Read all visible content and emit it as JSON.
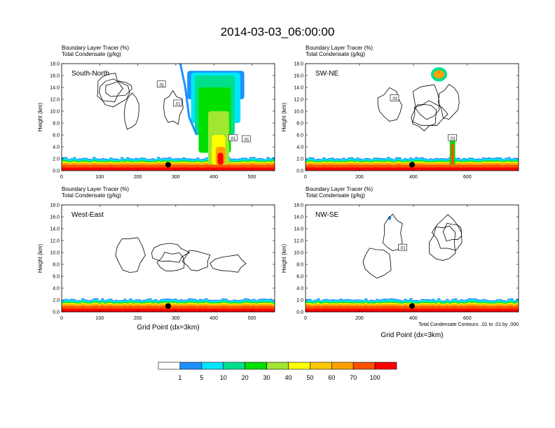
{
  "page_title": "2014-03-03_06:00:00",
  "chart_data": [
    {
      "type": "heatmap",
      "panel_label": "South-North",
      "title_line1": "Boundary Layer Tracer   (%)",
      "title_line2": "Total Condensate   (g/kg)",
      "ylabel": "Height (km)",
      "xlabel": "",
      "xlim": [
        0,
        560
      ],
      "ylim": [
        0,
        18
      ],
      "x_ticks": [
        "0",
        "100",
        "200",
        "300",
        "400",
        "500"
      ],
      "x_tick_values": [
        0,
        100,
        200,
        300,
        400,
        500
      ],
      "y_ticks": [
        "0.0",
        "2.0",
        "4.0",
        "6.0",
        "8.0",
        "10.0",
        "12.0",
        "14.0",
        "16.0",
        "18.0"
      ],
      "marker": {
        "x": 280,
        "y": 1.0
      },
      "contour_labels": [
        {
          "text": ".01",
          "x": 262,
          "y": 14.5
        },
        {
          "text": ".01",
          "x": 305,
          "y": 11.3
        },
        {
          "text": ".01",
          "x": 450,
          "y": 5.5
        },
        {
          "text": ".01",
          "x": 485,
          "y": 5.3
        }
      ],
      "note": ""
    },
    {
      "type": "heatmap",
      "panel_label": "SW-NE",
      "title_line1": "Boundary Layer Tracer   (%)",
      "title_line2": "Total Condensate   (g/kg)",
      "ylabel": "Height (km)",
      "xlabel": "",
      "xlim": [
        0,
        790
      ],
      "ylim": [
        0,
        18
      ],
      "x_ticks": [
        "0",
        "200",
        "400",
        "600"
      ],
      "x_tick_values": [
        0,
        200,
        400,
        600
      ],
      "y_ticks": [
        "0.0",
        "2.0",
        "4.0",
        "6.0",
        "8.0",
        "10.0",
        "12.0",
        "14.0",
        "16.0",
        "18.0"
      ],
      "marker": {
        "x": 395,
        "y": 1.0
      },
      "contour_labels": [
        {
          "text": ".01",
          "x": 330,
          "y": 12.2
        },
        {
          "text": ".01",
          "x": 545,
          "y": 5.5
        }
      ],
      "note": ""
    },
    {
      "type": "heatmap",
      "panel_label": "West-East",
      "title_line1": "Boundary Layer Tracer   (%)",
      "title_line2": "Total Condensate   (g/kg)",
      "ylabel": "Height (km)",
      "xlabel": "Grid Point (dx=3km)",
      "xlim": [
        0,
        560
      ],
      "ylim": [
        0,
        18
      ],
      "x_ticks": [
        "0",
        "100",
        "200",
        "300",
        "400",
        "500"
      ],
      "x_tick_values": [
        0,
        100,
        200,
        300,
        400,
        500
      ],
      "y_ticks": [
        "0.0",
        "2.0",
        "4.0",
        "6.0",
        "8.0",
        "10.0",
        "12.0",
        "14.0",
        "16.0",
        "18.0"
      ],
      "marker": {
        "x": 280,
        "y": 1.0
      },
      "contour_labels": [],
      "note": ""
    },
    {
      "type": "heatmap",
      "panel_label": "NW-SE",
      "title_line1": "Boundary Layer Tracer   (%)",
      "title_line2": "Total Condensate   (g/kg)",
      "ylabel": "Height (km)",
      "xlabel": "Grid Point (dx=3km)",
      "xlim": [
        0,
        790
      ],
      "ylim": [
        0,
        18
      ],
      "x_ticks": [
        "0",
        "200",
        "400",
        "600"
      ],
      "x_tick_values": [
        0,
        200,
        400,
        600
      ],
      "y_ticks": [
        "0.0",
        "2.0",
        "4.0",
        "6.0",
        "8.0",
        "10.0",
        "12.0",
        "14.0",
        "16.0",
        "18.0"
      ],
      "marker": {
        "x": 395,
        "y": 1.0
      },
      "contour_labels": [
        {
          "text": ".01",
          "x": 360,
          "y": 10.8
        }
      ],
      "note": "Total Condensate Contours: .01 to .01 by .000"
    }
  ],
  "colorbar": {
    "labels": [
      "1",
      "5",
      "10",
      "20",
      "30",
      "40",
      "50",
      "60",
      "70",
      "100"
    ],
    "colors": [
      "#ffffff",
      "#1e90ff",
      "#00e6ff",
      "#00e08c",
      "#00e000",
      "#a0e632",
      "#ffff00",
      "#ffc800",
      "#ffa000",
      "#ff5000",
      "#ff0000"
    ]
  }
}
